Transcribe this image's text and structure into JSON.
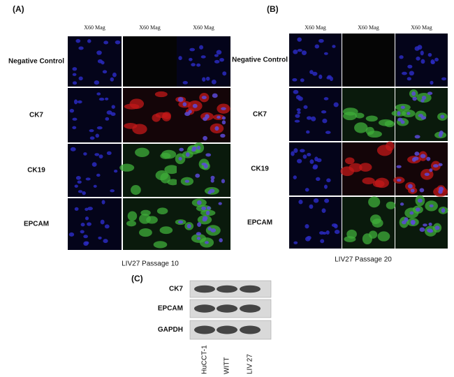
{
  "panels": [
    {
      "label": "(A)",
      "columns": [
        "X60 Mag",
        "X60 Mag",
        "X60 Mag"
      ],
      "rows": [
        "Negative Control",
        "CK7",
        "CK19",
        "EPCAM"
      ],
      "caption": "LIV27 Passage 10"
    },
    {
      "label": "(B)",
      "columns": [
        "X60 Mag",
        "X60 Mag",
        "X60 Mag"
      ],
      "rows": [
        "Negative Control",
        "CK7",
        "CK19",
        "EPCAM"
      ],
      "caption": "LIV27 Passage 20"
    }
  ],
  "blot": {
    "label": "(C)",
    "bands": [
      "CK7",
      "EPCAM",
      "GAPDH"
    ],
    "lanes": [
      "HuCCT-1",
      "WITT",
      "LIV 27"
    ]
  }
}
